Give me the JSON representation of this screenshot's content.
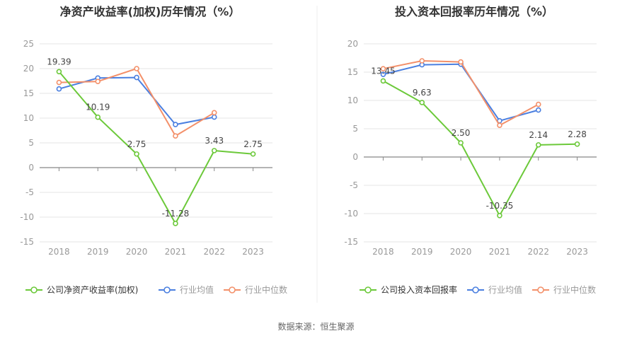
{
  "source": "数据来源：恒生聚源",
  "colors": {
    "company": "#6cc93a",
    "industry_avg": "#4a7fe0",
    "industry_median": "#f3906a",
    "axis": "#999999",
    "grid": "#e6e6e6",
    "zero": "#888888",
    "label": "#444444",
    "title": "#333333"
  },
  "chart_data": [
    {
      "type": "line",
      "title": "净资产收益率(加权)历年情况（%）",
      "categories": [
        "2018",
        "2019",
        "2020",
        "2021",
        "2022",
        "2023"
      ],
      "ylim": [
        -15,
        25
      ],
      "yticks": [
        25,
        20,
        15,
        10,
        5,
        0,
        -5,
        -10,
        -15
      ],
      "grid": true,
      "legend_position": "bottom",
      "series": [
        {
          "name": "公司净资产收益率(加权)",
          "color_key": "company",
          "values": [
            19.39,
            10.19,
            2.75,
            -11.28,
            3.43,
            2.75
          ],
          "labels": [
            "19.39",
            "10.19",
            "2.75",
            "-11.28",
            "3.43",
            "2.75"
          ]
        },
        {
          "name": "行业均值",
          "color_key": "industry_avg",
          "values": [
            15.9,
            18.1,
            18.2,
            8.7,
            10.2,
            null
          ]
        },
        {
          "name": "行业中位数",
          "color_key": "industry_median",
          "values": [
            17.2,
            17.4,
            20.0,
            6.4,
            11.1,
            null
          ]
        }
      ]
    },
    {
      "type": "line",
      "title": "投入资本回报率历年情况（%）",
      "categories": [
        "2018",
        "2019",
        "2020",
        "2021",
        "2022",
        "2023"
      ],
      "ylim": [
        -15,
        20
      ],
      "yticks": [
        20,
        15,
        10,
        5,
        0,
        -5,
        -10,
        -15
      ],
      "grid": true,
      "legend_position": "bottom",
      "series": [
        {
          "name": "公司投入资本回报率",
          "color_key": "company",
          "values": [
            13.45,
            9.63,
            2.5,
            -10.35,
            2.14,
            2.28
          ],
          "labels": [
            "13.45",
            "9.63",
            "2.50",
            "-10.35",
            "2.14",
            "2.28"
          ]
        },
        {
          "name": "行业均值",
          "color_key": "industry_avg",
          "values": [
            14.6,
            16.3,
            16.4,
            6.4,
            8.3,
            null
          ]
        },
        {
          "name": "行业中位数",
          "color_key": "industry_median",
          "values": [
            15.6,
            17.0,
            16.8,
            5.6,
            9.3,
            null
          ]
        }
      ]
    }
  ]
}
